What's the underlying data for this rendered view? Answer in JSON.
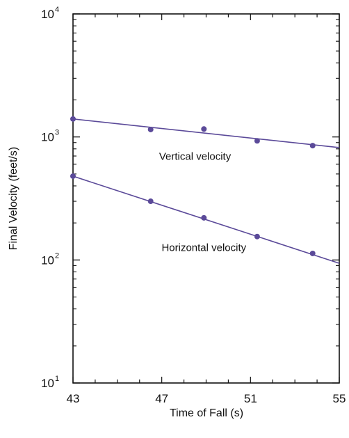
{
  "chart_data": {
    "type": "scatter",
    "title": "",
    "xlabel": "Time of Fall (s)",
    "ylabel": "Final Velocity (feet/s)",
    "xlim": [
      43,
      55
    ],
    "ylim": [
      10,
      10000
    ],
    "yscale": "log",
    "grid": false,
    "x_ticks": [
      {
        "value": 43,
        "label": "43"
      },
      {
        "value": 47,
        "label": "47"
      },
      {
        "value": 51,
        "label": "51"
      },
      {
        "value": 55,
        "label": "55"
      }
    ],
    "y_ticks": [
      {
        "value": 10,
        "base": "10",
        "exp": "1"
      },
      {
        "value": 100,
        "base": "10",
        "exp": "2"
      },
      {
        "value": 1000,
        "base": "10",
        "exp": "3"
      },
      {
        "value": 10000,
        "base": "10",
        "exp": "4"
      }
    ],
    "color": "#5b4a99",
    "series": [
      {
        "x": [
          43.0,
          46.5,
          48.9,
          51.3,
          53.8
        ],
        "y": [
          1400,
          1150,
          1160,
          930,
          850
        ],
        "fit": {
          "x": [
            43,
            55
          ],
          "y": [
            1400,
            820
          ]
        }
      },
      {
        "x": [
          43.0,
          46.5,
          48.9,
          51.3,
          53.8
        ],
        "y": [
          480,
          300,
          220,
          155,
          113
        ],
        "fit": {
          "x": [
            43,
            55
          ],
          "y": [
            480,
            94
          ]
        }
      }
    ],
    "annotations": [
      {
        "text": "Vertical velocity",
        "x": 48.5,
        "y": 650
      },
      {
        "text": "Horizontal velocity",
        "x": 48.9,
        "y": 118
      }
    ]
  }
}
